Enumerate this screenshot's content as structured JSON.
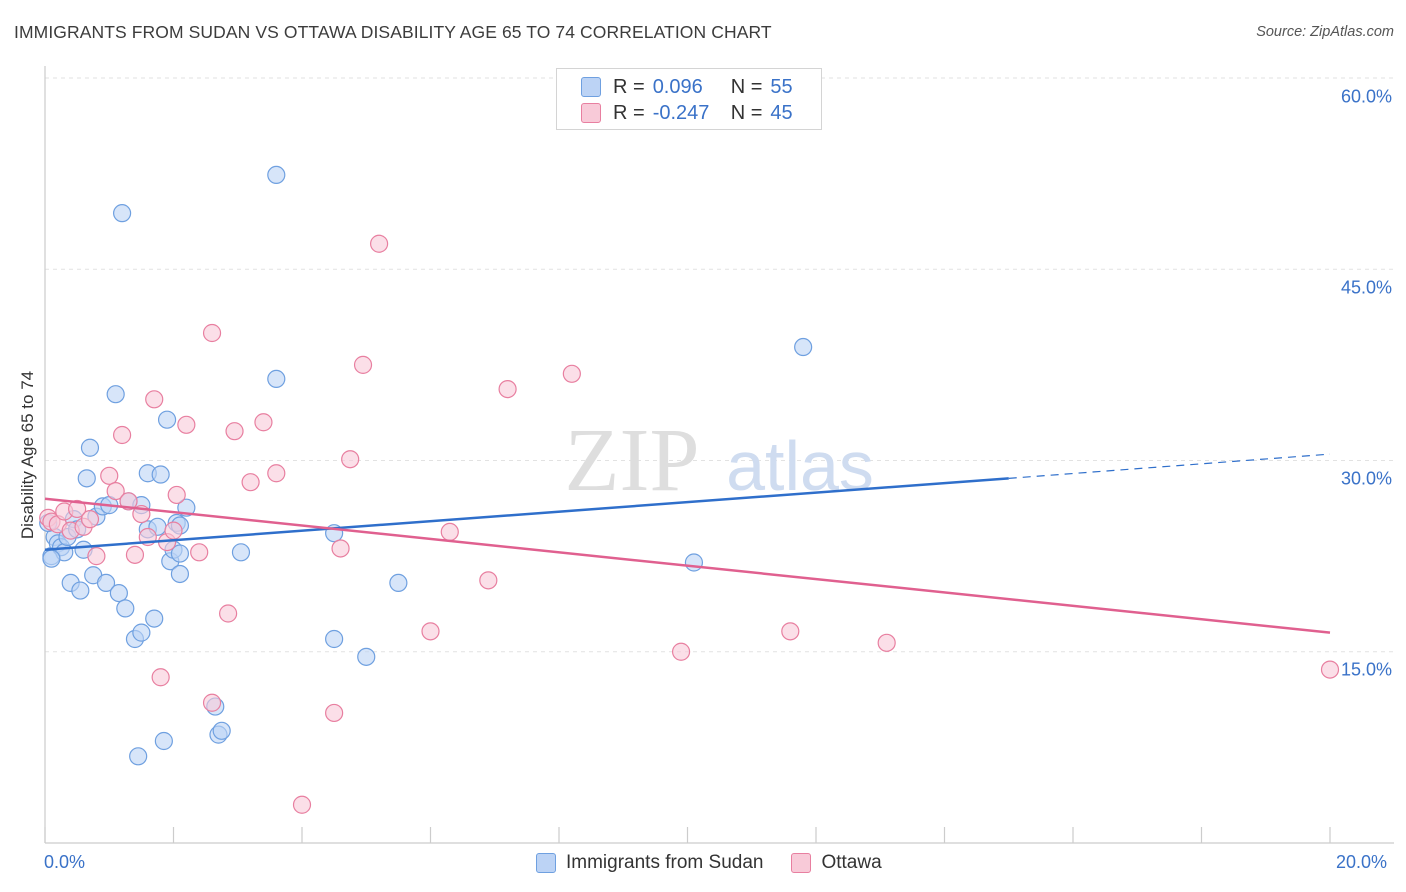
{
  "header": {
    "title": "IMMIGRANTS FROM SUDAN VS OTTAWA DISABILITY AGE 65 TO 74 CORRELATION CHART",
    "source": "Source: ZipAtlas.com"
  },
  "watermark": {
    "zip": "ZIP",
    "atlas": "atlas"
  },
  "legend": {
    "rows": [
      {
        "r_label": "R =",
        "r_value": "0.096",
        "n_label": "N =",
        "n_value": "55",
        "color": "#6fa0e0",
        "fill": "#bcd3f5"
      },
      {
        "r_label": "R =",
        "r_value": "-0.247",
        "n_label": "N =",
        "n_value": "45",
        "color": "#e87fa0",
        "fill": "#f8cad8"
      }
    ]
  },
  "colors": {
    "blue_line": "#2f6fcb",
    "pink_line": "#e0608f",
    "tick_text": "#3a72c8",
    "grid": "#e2e2e2"
  },
  "chart_data": {
    "type": "scatter",
    "title": "IMMIGRANTS FROM SUDAN VS OTTAWA DISABILITY AGE 65 TO 74 CORRELATION CHART",
    "xlabel": "",
    "ylabel": "Disability Age 65 to 74",
    "xlim": [
      0,
      20
    ],
    "ylim": [
      0,
      60
    ],
    "x_tick_labels": [
      "0.0%",
      "20.0%"
    ],
    "y_ticks": [
      15,
      30,
      45,
      60
    ],
    "y_tick_labels": [
      "15.0%",
      "30.0%",
      "45.0%",
      "60.0%"
    ],
    "grid": true,
    "legend_position": "top-center",
    "series": [
      {
        "name": "Immigrants from Sudan",
        "color": "#6fa0e0",
        "fill": "#bcd3f5",
        "trend": {
          "x": [
            0,
            15
          ],
          "y": [
            23.0,
            28.6
          ],
          "dashed_to": [
            20,
            30.5
          ]
        },
        "points": [
          [
            0.1,
            22.5
          ],
          [
            0.15,
            24.0
          ],
          [
            0.2,
            23.5
          ],
          [
            0.25,
            23.2
          ],
          [
            0.3,
            22.8
          ],
          [
            0.35,
            24.0
          ],
          [
            0.4,
            20.4
          ],
          [
            0.45,
            25.4
          ],
          [
            0.5,
            24.6
          ],
          [
            0.55,
            19.8
          ],
          [
            0.6,
            23.0
          ],
          [
            0.65,
            28.6
          ],
          [
            0.7,
            31.0
          ],
          [
            0.75,
            21.0
          ],
          [
            0.8,
            25.6
          ],
          [
            0.9,
            26.4
          ],
          [
            0.95,
            20.4
          ],
          [
            1.0,
            26.5
          ],
          [
            1.1,
            35.2
          ],
          [
            1.15,
            19.6
          ],
          [
            1.2,
            49.4
          ],
          [
            1.25,
            18.4
          ],
          [
            1.3,
            26.8
          ],
          [
            1.4,
            16.0
          ],
          [
            1.45,
            6.8
          ],
          [
            1.5,
            16.5
          ],
          [
            1.5,
            26.5
          ],
          [
            1.6,
            29.0
          ],
          [
            1.6,
            24.6
          ],
          [
            1.7,
            17.6
          ],
          [
            1.75,
            24.8
          ],
          [
            1.8,
            28.9
          ],
          [
            1.85,
            8.0
          ],
          [
            1.9,
            33.2
          ],
          [
            1.95,
            22.1
          ],
          [
            2.0,
            23.0
          ],
          [
            2.05,
            25.1
          ],
          [
            2.1,
            24.9
          ],
          [
            2.1,
            22.7
          ],
          [
            2.1,
            21.1
          ],
          [
            2.2,
            26.3
          ],
          [
            2.65,
            10.7
          ],
          [
            2.7,
            8.5
          ],
          [
            2.75,
            8.8
          ],
          [
            3.05,
            22.8
          ],
          [
            3.6,
            52.4
          ],
          [
            3.6,
            36.4
          ],
          [
            4.5,
            24.3
          ],
          [
            4.5,
            16.0
          ],
          [
            5.0,
            14.6
          ],
          [
            5.5,
            20.4
          ],
          [
            10.1,
            22.0
          ],
          [
            11.8,
            38.9
          ],
          [
            0.05,
            25.1
          ],
          [
            0.1,
            22.3
          ]
        ]
      },
      {
        "name": "Ottawa",
        "color": "#e87fa0",
        "fill": "#f8cad8",
        "trend": {
          "x": [
            0,
            20
          ],
          "y": [
            27.0,
            16.5
          ]
        },
        "points": [
          [
            0.05,
            25.5
          ],
          [
            0.1,
            25.2
          ],
          [
            0.2,
            25.0
          ],
          [
            0.3,
            26.0
          ],
          [
            0.4,
            24.5
          ],
          [
            0.5,
            26.2
          ],
          [
            0.6,
            24.8
          ],
          [
            0.7,
            25.4
          ],
          [
            0.8,
            22.5
          ],
          [
            1.0,
            28.8
          ],
          [
            1.1,
            27.6
          ],
          [
            1.2,
            32.0
          ],
          [
            1.3,
            26.8
          ],
          [
            1.4,
            22.6
          ],
          [
            1.5,
            25.8
          ],
          [
            1.6,
            24.0
          ],
          [
            1.7,
            34.8
          ],
          [
            1.8,
            13.0
          ],
          [
            1.9,
            23.6
          ],
          [
            2.0,
            24.5
          ],
          [
            2.05,
            27.3
          ],
          [
            2.2,
            32.8
          ],
          [
            2.4,
            22.8
          ],
          [
            2.6,
            40.0
          ],
          [
            2.6,
            11.0
          ],
          [
            2.85,
            18.0
          ],
          [
            2.95,
            32.3
          ],
          [
            3.2,
            28.3
          ],
          [
            3.4,
            33.0
          ],
          [
            3.6,
            29.0
          ],
          [
            4.0,
            3.0
          ],
          [
            4.5,
            10.2
          ],
          [
            4.6,
            23.1
          ],
          [
            4.75,
            30.1
          ],
          [
            4.95,
            37.5
          ],
          [
            5.2,
            47.0
          ],
          [
            6.0,
            16.6
          ],
          [
            6.3,
            24.4
          ],
          [
            6.9,
            20.6
          ],
          [
            7.2,
            35.6
          ],
          [
            8.2,
            36.8
          ],
          [
            9.9,
            15.0
          ],
          [
            11.6,
            16.6
          ],
          [
            13.1,
            15.7
          ],
          [
            20.0,
            13.6
          ]
        ]
      }
    ]
  },
  "bottom_legend": {
    "items": [
      {
        "label": "Immigrants from Sudan",
        "color": "#6fa0e0",
        "fill": "#bcd3f5"
      },
      {
        "label": "Ottawa",
        "color": "#e87fa0",
        "fill": "#f8cad8"
      }
    ]
  }
}
